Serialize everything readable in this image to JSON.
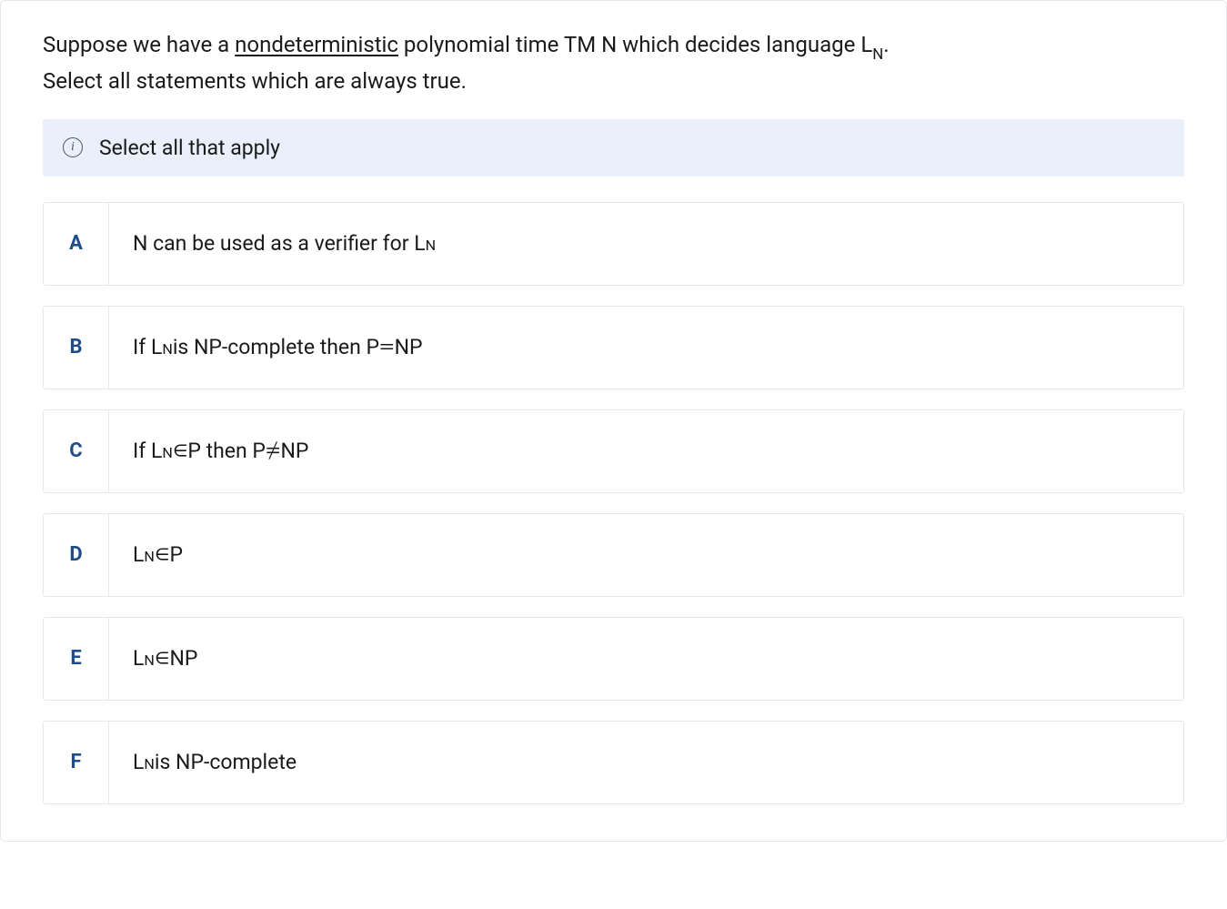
{
  "colors": {
    "cardBorder": "#e5e7eb",
    "hintBg": "#eaf0fb",
    "optionLetter": "#1e4d8b",
    "textColor": "#1a1a1a",
    "infoIconColor": "#4a5568"
  },
  "typography": {
    "questionFontSize": 24,
    "hintFontSize": 23,
    "optionFontSize": 23,
    "letterFontSize": 22
  },
  "question": {
    "line1_part1": "Suppose we have a ",
    "line1_underlined": "nondeterministic",
    "line1_part2": " polynomial time TM N which decides language L",
    "line1_sub": "N",
    "line1_end": ".",
    "line2_part1": "Select all statements which are ",
    "line2_emph": "always",
    "line2_part2": " true."
  },
  "hint": {
    "icon_label": "i",
    "text": "Select all that apply"
  },
  "options": [
    {
      "letter": "A",
      "html": "N can be used as a verifier for L<span class=\"sub\">N</span>"
    },
    {
      "letter": "B",
      "html": "If L<span class=\"sub\">N</span> is NP-complete then P <span class=\"math\">=</span> NP"
    },
    {
      "letter": "C",
      "html": "If L<span class=\"sub\">N</span> <span class=\"math\">∈</span> P then P <span class=\"math\">≠</span> NP"
    },
    {
      "letter": "D",
      "html": "L<span class=\"sub\">N</span> <span class=\"math\">∈</span> P"
    },
    {
      "letter": "E",
      "html": "L<span class=\"sub\">N</span> <span class=\"math\">∈</span> NP"
    },
    {
      "letter": "F",
      "html": "L<span class=\"sub\">N</span> is NP-complete"
    }
  ]
}
